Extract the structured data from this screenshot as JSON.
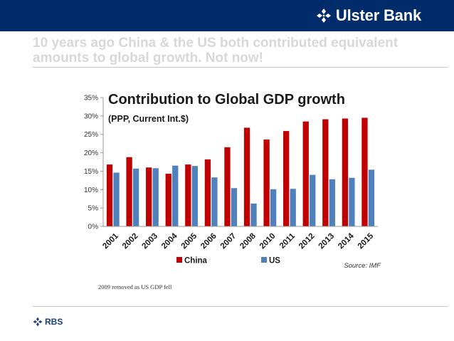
{
  "header": {
    "brand_name": "Ulster Bank",
    "brand_icon": "ulster-bank-logo-icon",
    "bar_color": "#002c6c"
  },
  "headline": "10 years ago China & the US both contributed equivalent amounts to global growth. Not now!",
  "chart_data": {
    "type": "bar",
    "title": "Contribution to Global GDP growth",
    "subtitle": "(PPP, Current Int.$)",
    "categories": [
      "2001",
      "2002",
      "2003",
      "2004",
      "2005",
      "2006",
      "2007",
      "2008",
      "2010",
      "2011",
      "2012",
      "2013",
      "2014",
      "2015"
    ],
    "series": [
      {
        "name": "China",
        "color": "#c00000",
        "values": [
          16.8,
          18.8,
          16.0,
          14.3,
          16.8,
          18.2,
          21.5,
          26.8,
          23.6,
          25.9,
          28.5,
          29.1,
          29.3,
          29.5
        ]
      },
      {
        "name": "US",
        "color": "#4f81bd",
        "values": [
          14.6,
          15.7,
          15.8,
          16.5,
          16.4,
          13.3,
          10.4,
          6.2,
          10.1,
          10.2,
          14.0,
          12.8,
          13.2,
          15.4
        ]
      }
    ],
    "y_ticks": [
      "0%",
      "5%",
      "10%",
      "15%",
      "20%",
      "25%",
      "30%",
      "35%"
    ],
    "ylim": [
      0,
      35
    ],
    "xlabel": "",
    "ylabel": "",
    "legend_position": "bottom",
    "grid": false,
    "source": "Source: IMF"
  },
  "footnote": "2009 removed as US GDP fell",
  "footer": {
    "logo_label": "RBS",
    "logo_icon": "rbs-logo-icon"
  }
}
